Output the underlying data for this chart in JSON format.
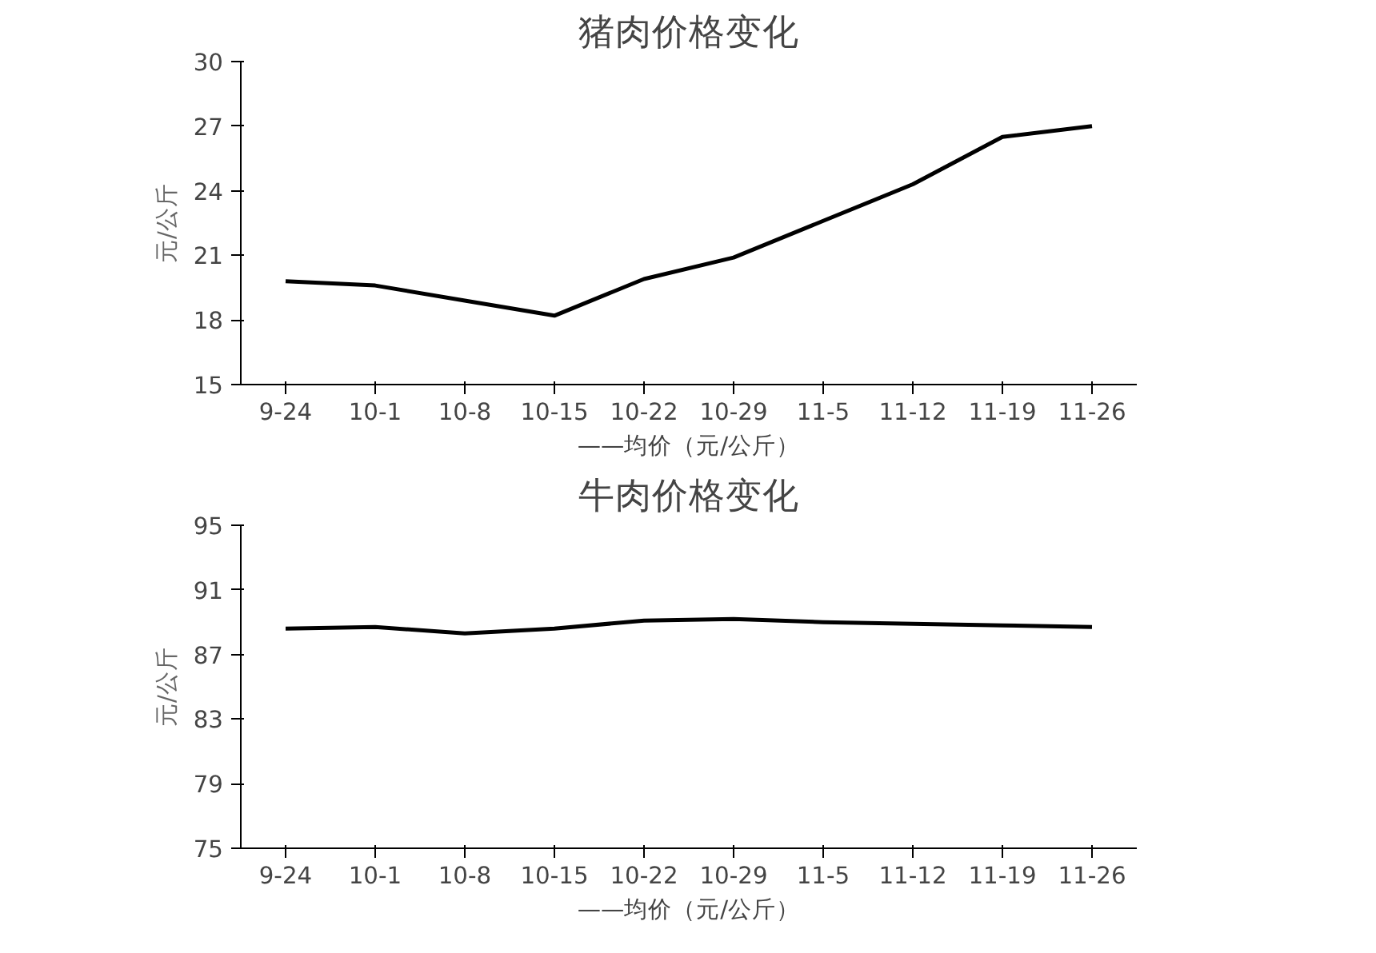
{
  "chart_data": [
    {
      "type": "line",
      "title": "猪肉价格变化",
      "xlabel": "——均价（元/公斤）",
      "ylabel": "元/公斤",
      "categories": [
        "9-24",
        "10-1",
        "10-8",
        "10-15",
        "10-22",
        "10-29",
        "11-5",
        "11-12",
        "11-19",
        "11-26"
      ],
      "series": [
        {
          "color": "#000000",
          "values": [
            19.8,
            19.6,
            18.9,
            18.2,
            19.9,
            20.9,
            22.6,
            24.3,
            26.5,
            27.0
          ]
        }
      ],
      "ylim": [
        15,
        30
      ],
      "yticks": [
        15,
        18,
        21,
        24,
        27,
        30
      ],
      "grid": false,
      "marker": "none",
      "line_style": "solid"
    },
    {
      "type": "line",
      "title": "牛肉价格变化",
      "xlabel": "——均价（元/公斤）",
      "ylabel": "元/公斤",
      "categories": [
        "9-24",
        "10-1",
        "10-8",
        "10-15",
        "10-22",
        "10-29",
        "11-5",
        "11-12",
        "11-19",
        "11-26"
      ],
      "series": [
        {
          "color": "#000000",
          "values": [
            88.6,
            88.7,
            88.3,
            88.6,
            89.1,
            89.2,
            89.0,
            88.9,
            88.8,
            88.7
          ]
        }
      ],
      "ylim": [
        75,
        95
      ],
      "yticks": [
        75,
        79,
        83,
        87,
        91,
        95
      ],
      "grid": false,
      "marker": "none",
      "line_style": "solid"
    }
  ]
}
